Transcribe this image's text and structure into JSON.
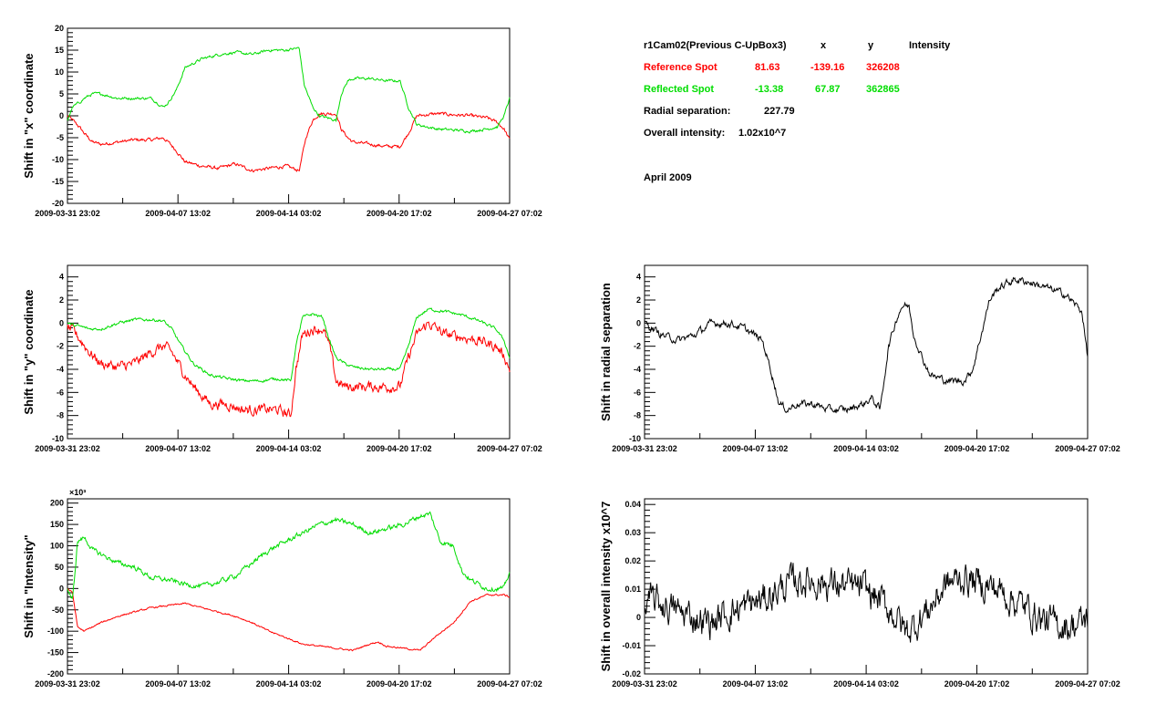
{
  "info": {
    "header": {
      "label": "r1Cam02(Previous C-UpBox3)",
      "x": "x",
      "y": "y",
      "intensity": "Intensity"
    },
    "reference": {
      "label": "Reference Spot",
      "x": "81.63",
      "y": "-139.16",
      "intensity": "326208",
      "color": "#ff0000"
    },
    "reflected": {
      "label": "Reflected Spot",
      "x": "-13.38",
      "y": "67.87",
      "intensity": "362865",
      "color": "#00dd00"
    },
    "radial": {
      "label": "Radial separation:",
      "value": "227.79"
    },
    "overall": {
      "label": "Overall intensity:",
      "value": "1.02x10^7"
    },
    "period": "April 2009"
  },
  "colors": {
    "reference": "#ff0000",
    "reflected": "#00dd00",
    "single": "#000000"
  },
  "chart_data": [
    {
      "id": "x-shift",
      "type": "line",
      "ylabel": "Shift in \"x\" coordinate",
      "ylim": [
        -20,
        20
      ],
      "yticks": [
        -20,
        -15,
        -10,
        -5,
        0,
        5,
        10,
        15,
        20
      ],
      "xlim": [
        0,
        26.33
      ],
      "xticks": [
        {
          "x": 0,
          "label": "2009-03-31 23:02"
        },
        {
          "x": 6.58,
          "label": "2009-04-07 13:02"
        },
        {
          "x": 13.17,
          "label": "2009-04-14 03:02"
        },
        {
          "x": 19.75,
          "label": "2009-04-20 17:02"
        },
        {
          "x": 26.33,
          "label": "2009-04-27 07:02"
        }
      ],
      "series": [
        {
          "key": "reference",
          "noise": 0.6,
          "x": [
            0,
            0.3,
            0.7,
            1,
            1.5,
            2,
            3,
            4,
            5,
            5.7,
            6,
            6.5,
            7,
            8,
            9,
            10,
            11,
            12,
            13,
            13.8,
            14.2,
            14.6,
            15,
            16,
            16.3,
            16.7,
            17,
            18,
            19,
            19.8,
            20.3,
            20.8,
            22,
            24,
            25,
            25.6,
            26,
            26.33
          ],
          "y": [
            0,
            -1,
            -2.5,
            -4,
            -6,
            -6.5,
            -6,
            -5.5,
            -5.5,
            -5,
            -6,
            -8,
            -10.5,
            -11.5,
            -12,
            -11,
            -12.5,
            -12,
            -11.5,
            -12.5,
            -5,
            -1,
            0.5,
            0.5,
            -3,
            -5,
            -6,
            -6.5,
            -7,
            -7,
            -4,
            0,
            0.5,
            0,
            -0.5,
            -1.5,
            -3,
            -5.5
          ]
        },
        {
          "key": "reflected",
          "noise": 0.5,
          "x": [
            0,
            0.3,
            0.7,
            1,
            1.5,
            2,
            3,
            4,
            5,
            5.7,
            6,
            6.5,
            7,
            8,
            9,
            10,
            11,
            12,
            13,
            13.8,
            14.1,
            14.6,
            15,
            16,
            16.3,
            16.7,
            17,
            18,
            19,
            19.8,
            20.3,
            20.8,
            22,
            24,
            25,
            25.6,
            26,
            26.33
          ],
          "y": [
            -1,
            2,
            3,
            4,
            5,
            5,
            4,
            4,
            4,
            2,
            3,
            6,
            11,
            13,
            14,
            14.5,
            14,
            15,
            15,
            15.5,
            7,
            2,
            0,
            -1,
            5,
            8,
            8.5,
            8.5,
            8,
            8,
            2,
            -2,
            -3,
            -3.5,
            -3,
            -2.5,
            0,
            4
          ]
        }
      ]
    },
    {
      "id": "y-shift",
      "type": "line",
      "ylabel": "Shift in \"y\" coordinate",
      "ylim": [
        -10,
        5
      ],
      "yticks": [
        -10,
        -8,
        -6,
        -4,
        -2,
        0,
        2,
        4
      ],
      "xlim": [
        0,
        26.33
      ],
      "xticks": [
        {
          "x": 0,
          "label": "2009-03-31 23:02"
        },
        {
          "x": 6.58,
          "label": "2009-04-07 13:02"
        },
        {
          "x": 13.17,
          "label": "2009-04-14 03:02"
        },
        {
          "x": 19.75,
          "label": "2009-04-20 17:02"
        },
        {
          "x": 26.33,
          "label": "2009-04-27 07:02"
        }
      ],
      "series": [
        {
          "key": "reference",
          "noise": 0.7,
          "x": [
            0,
            0.4,
            0.8,
            1.3,
            2,
            3,
            4,
            5,
            5.7,
            6.2,
            6.8,
            7.5,
            8.5,
            9.5,
            10.5,
            11.5,
            12.5,
            13.3,
            13.6,
            14,
            14.6,
            15.2,
            15.6,
            16,
            16.5,
            17,
            18,
            19,
            19.8,
            20.3,
            20.8,
            21.5,
            22.5,
            23.5,
            24.5,
            25.5,
            26,
            26.33
          ],
          "y": [
            -0.3,
            -0.8,
            -1.5,
            -2.5,
            -3.5,
            -3.8,
            -3.5,
            -2.5,
            -2,
            -2.5,
            -4,
            -5.5,
            -7,
            -7,
            -7.5,
            -7.5,
            -7.5,
            -8,
            -4,
            -1,
            -0.5,
            -0.5,
            -2,
            -5,
            -5.5,
            -5.5,
            -5.5,
            -5.5,
            -5.5,
            -3,
            -1,
            0,
            -1,
            -1.2,
            -1.5,
            -2,
            -2.8,
            -4
          ]
        },
        {
          "key": "reflected",
          "noise": 0.2,
          "x": [
            0,
            0.4,
            0.8,
            1.3,
            2,
            3,
            4,
            5,
            5.7,
            6.2,
            6.8,
            7.5,
            8.5,
            9.5,
            10.5,
            11.5,
            12.5,
            13.3,
            13.6,
            14,
            14.6,
            15.2,
            15.6,
            16,
            16.5,
            17,
            18,
            19,
            19.8,
            20.3,
            20.8,
            21.5,
            22.5,
            23.5,
            24.5,
            25.5,
            26,
            26.33
          ],
          "y": [
            0,
            -0.2,
            -0.3,
            -0.5,
            -0.5,
            0,
            0.3,
            0.3,
            0.2,
            -0.5,
            -2,
            -3.5,
            -4.5,
            -4.8,
            -5,
            -5,
            -4.8,
            -5,
            -2,
            0.5,
            0.8,
            0.5,
            -1.5,
            -3,
            -3.5,
            -3.8,
            -4,
            -4,
            -4,
            -2,
            0.5,
            1.2,
            1,
            0.7,
            0.2,
            -0.5,
            -1.5,
            -3
          ]
        }
      ]
    },
    {
      "id": "intensity-shift",
      "type": "line",
      "ylabel": "Shift in \"Intensity\"",
      "yexp": "×10³",
      "ylim": [
        -200,
        210
      ],
      "yticks": [
        -200,
        -150,
        -100,
        -50,
        0,
        50,
        100,
        150,
        200
      ],
      "xlim": [
        0,
        26.33
      ],
      "xticks": [
        {
          "x": 0,
          "label": "2009-03-31 23:02"
        },
        {
          "x": 6.58,
          "label": "2009-04-07 13:02"
        },
        {
          "x": 13.17,
          "label": "2009-04-14 03:02"
        },
        {
          "x": 19.75,
          "label": "2009-04-20 17:02"
        },
        {
          "x": 26.33,
          "label": "2009-04-27 07:02"
        }
      ],
      "series": [
        {
          "key": "reference",
          "noise": 3,
          "x": [
            0,
            0.3,
            0.6,
            1,
            2,
            3,
            4,
            5,
            6,
            7,
            8,
            9,
            10,
            11,
            12,
            13,
            14,
            15,
            16,
            17,
            18,
            18.5,
            19,
            20,
            21,
            22,
            23,
            24,
            25,
            26,
            26.33
          ],
          "y": [
            0,
            -10,
            -90,
            -100,
            -80,
            -65,
            -55,
            -45,
            -40,
            -35,
            -45,
            -55,
            -65,
            -80,
            -100,
            -115,
            -130,
            -135,
            -140,
            -145,
            -130,
            -125,
            -135,
            -140,
            -145,
            -110,
            -80,
            -30,
            -15,
            -15,
            -20
          ]
        },
        {
          "key": "reflected",
          "noise": 9,
          "x": [
            0,
            0.3,
            0.6,
            1,
            1.5,
            2,
            3,
            4,
            5,
            6,
            7,
            8,
            9,
            10,
            11,
            12,
            13,
            14,
            15,
            16,
            17,
            18,
            19,
            20,
            21,
            21.6,
            22.2,
            23,
            23.5,
            24,
            25,
            26,
            26.33
          ],
          "y": [
            0,
            -30,
            110,
            120,
            90,
            80,
            60,
            50,
            25,
            20,
            10,
            5,
            15,
            30,
            60,
            90,
            110,
            130,
            150,
            160,
            150,
            130,
            140,
            150,
            170,
            175,
            110,
            100,
            40,
            20,
            0,
            0,
            40
          ]
        }
      ]
    },
    {
      "id": "radial-shift",
      "type": "line",
      "ylabel": "Shift in radial separation",
      "ylim": [
        -10,
        5
      ],
      "yticks": [
        -10,
        -8,
        -6,
        -4,
        -2,
        0,
        2,
        4
      ],
      "xlim": [
        0,
        26.33
      ],
      "xticks": [
        {
          "x": 0,
          "label": "2009-03-31 23:02"
        },
        {
          "x": 6.58,
          "label": "2009-04-07 13:02"
        },
        {
          "x": 13.17,
          "label": "2009-04-14 03:02"
        },
        {
          "x": 19.75,
          "label": "2009-04-20 17:02"
        },
        {
          "x": 26.33,
          "label": "2009-04-27 07:02"
        }
      ],
      "series": [
        {
          "key": "single",
          "noise": 0.5,
          "x": [
            0,
            0.5,
            1,
            2,
            3,
            4,
            5,
            6,
            7,
            7.5,
            8,
            8.5,
            9,
            10,
            11,
            12,
            13,
            13.5,
            14,
            14.5,
            15,
            15.3,
            15.7,
            16,
            16.5,
            17,
            18,
            19,
            19.5,
            20,
            20.5,
            21,
            22,
            23,
            24,
            25,
            26,
            26.33
          ],
          "y": [
            0,
            -0.5,
            -1,
            -1.5,
            -1,
            0,
            0,
            -0.5,
            -1.5,
            -4,
            -7,
            -7.5,
            -7,
            -7,
            -7.5,
            -7.5,
            -7,
            -6.5,
            -7.5,
            -2,
            0.5,
            1.5,
            1.5,
            -1,
            -3,
            -4.5,
            -5,
            -5,
            -4,
            -1,
            2,
            3,
            3.8,
            3.5,
            3,
            2.5,
            1,
            -3
          ]
        }
      ]
    },
    {
      "id": "overall-shift",
      "type": "line",
      "ylabel": "Shift in overall intensity x10^7",
      "ylim": [
        -0.02,
        0.042
      ],
      "yticks": [
        -0.02,
        -0.01,
        0,
        0.01,
        0.02,
        0.03,
        0.04
      ],
      "xlim": [
        0,
        26.33
      ],
      "xticks": [
        {
          "x": 0,
          "label": "2009-03-31 23:02"
        },
        {
          "x": 6.58,
          "label": "2009-04-07 13:02"
        },
        {
          "x": 13.17,
          "label": "2009-04-14 03:02"
        },
        {
          "x": 19.75,
          "label": "2009-04-20 17:02"
        },
        {
          "x": 26.33,
          "label": "2009-04-27 07:02"
        }
      ],
      "series": [
        {
          "key": "single",
          "noise": 0.009,
          "x": [
            0,
            0.5,
            1,
            2,
            3,
            4,
            5,
            6,
            7,
            8,
            9,
            10,
            11,
            12,
            13,
            14,
            15,
            15.5,
            16,
            17,
            18,
            19,
            20,
            21,
            22,
            23,
            24,
            25,
            26,
            26.33
          ],
          "y": [
            0.003,
            0.006,
            0.005,
            0.002,
            0.0,
            -0.002,
            0.002,
            0.004,
            0.006,
            0.01,
            0.013,
            0.013,
            0.012,
            0.011,
            0.01,
            0.006,
            0.0,
            -0.005,
            -0.003,
            0.004,
            0.012,
            0.014,
            0.012,
            0.01,
            0.006,
            0.002,
            -0.002,
            -0.003,
            -0.002,
            0.0
          ]
        }
      ]
    }
  ]
}
